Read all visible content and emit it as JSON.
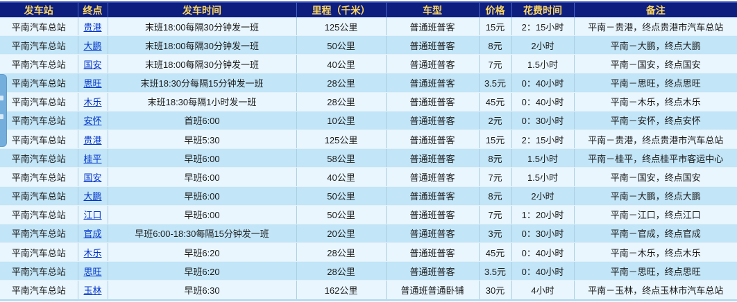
{
  "colors": {
    "header_bg": "#0d1e7e",
    "header_text": "#ffd75e",
    "row_light": "#e9f6fe",
    "row_dark": "#c2e5f7",
    "link": "#0033cc",
    "cell_border": "#a9cfe2",
    "widget": "#74aedd"
  },
  "table": {
    "headers": [
      "发车站",
      "终点",
      "发车时间",
      "里程（千米）",
      "车型",
      "价格",
      "花费时间",
      "备注"
    ],
    "rows": [
      [
        "平南汽车总站",
        "贵港",
        "末班18:00每隔30分钟发一班",
        "125公里",
        "普通班普客",
        "15元",
        "2：15小时",
        "平南－贵港，终点贵港市汽车总站"
      ],
      [
        "平南汽车总站",
        "大鹏",
        "末班18:00每隔30分钟发一班",
        "50公里",
        "普通班普客",
        "8元",
        "2小时",
        "平南－大鹏，终点大鹏"
      ],
      [
        "平南汽车总站",
        "国安",
        "末班18:00每隔30分钟发一班",
        "40公里",
        "普通班普客",
        "7元",
        "1.5小时",
        "平南－国安，终点国安"
      ],
      [
        "平南汽车总站",
        "思旺",
        "末班18:30分每隔15分钟发一班",
        "28公里",
        "普通班普客",
        "3.5元",
        "0：40小时",
        "平南－思旺，终点思旺"
      ],
      [
        "平南汽车总站",
        "木乐",
        "末班18:30每隔1小时发一班",
        "28公里",
        "普通班普客",
        "45元",
        "0：40小时",
        "平南－木乐，终点木乐"
      ],
      [
        "平南汽车总站",
        "安怀",
        "首班6:00",
        "10公里",
        "普通班普客",
        "2元",
        "0：30小时",
        "平南－安怀，终点安怀"
      ],
      [
        "平南汽车总站",
        "贵港",
        "早班5:30",
        "125公里",
        "普通班普客",
        "15元",
        "2：15小时",
        "平南－贵港，终点贵港市汽车总站"
      ],
      [
        "平南汽车总站",
        "桂平",
        "早班6:00",
        "58公里",
        "普通班普客",
        "8元",
        "1.5小时",
        "平南－桂平，终点桂平市客运中心"
      ],
      [
        "平南汽车总站",
        "国安",
        "早班6:00",
        "40公里",
        "普通班普客",
        "7元",
        "1.5小时",
        "平南－国安，终点国安"
      ],
      [
        "平南汽车总站",
        "大鹏",
        "早班6:00",
        "50公里",
        "普通班普客",
        "8元",
        "2小时",
        "平南－大鹏，终点大鹏"
      ],
      [
        "平南汽车总站",
        "江口",
        "早班6:00",
        "50公里",
        "普通班普客",
        "7元",
        "1：20小时",
        "平南－江口，终点江口"
      ],
      [
        "平南汽车总站",
        "官成",
        "早班6:00-18:30每隔15分钟发一班",
        "20公里",
        "普通班普客",
        "3元",
        "0：30小时",
        "平南－官成，终点官成"
      ],
      [
        "平南汽车总站",
        "木乐",
        "早班6:20",
        "28公里",
        "普通班普客",
        "45元",
        "0：40小时",
        "平南－木乐，终点木乐"
      ],
      [
        "平南汽车总站",
        "思旺",
        "早班6:20",
        "28公里",
        "普通班普客",
        "3.5元",
        "0：40小时",
        "平南－思旺，终点思旺"
      ],
      [
        "平南汽车总站",
        "玉林",
        "早班6:30",
        "162公里",
        "普通班普通卧铺",
        "30元",
        "4小时",
        "平南－玉林，终点玉林市汽车总站"
      ]
    ]
  }
}
